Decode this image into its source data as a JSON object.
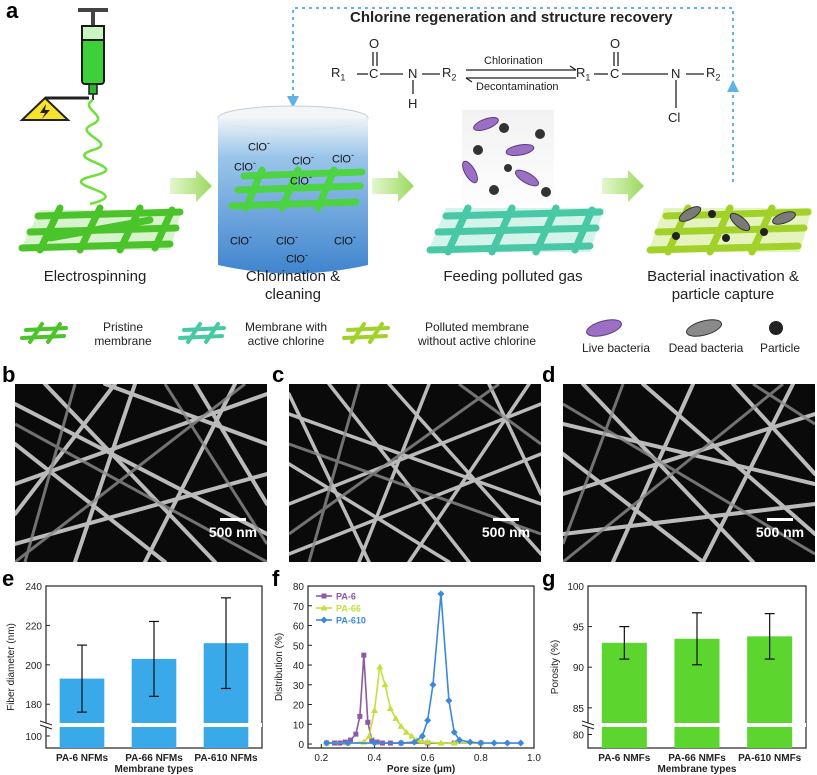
{
  "panels": {
    "a": "a",
    "b": "b",
    "c": "c",
    "d": "d",
    "e": "e",
    "f": "f",
    "g": "g"
  },
  "schematic": {
    "regen_title": "Chlorine regeneration and structure recovery",
    "reaction": {
      "left": {
        "R1": "R",
        "R1sub": "1",
        "C": "C",
        "O": "O",
        "N": "N",
        "H": "H",
        "R2": "R",
        "R2sub": "2"
      },
      "right": {
        "R1": "R",
        "R1sub": "1",
        "C": "C",
        "O": "O",
        "N": "N",
        "Cl": "Cl",
        "R2": "R",
        "R2sub": "2"
      },
      "forward": "Chlorination",
      "reverse": "Decontamination"
    },
    "clo_labels": [
      "ClO",
      "ClO",
      "ClO",
      "ClO",
      "ClO",
      "ClO",
      "ClO",
      "ClO",
      "ClO"
    ],
    "clo_charge": "-",
    "steps": [
      {
        "label": "Electrospinning"
      },
      {
        "label": "Chlorination &\ncleaning"
      },
      {
        "label": "Feeding polluted gas"
      },
      {
        "label": "Bacterial inactivation &\nparticle capture"
      }
    ],
    "legend": [
      {
        "label": "Pristine\nmembrane",
        "color": "#5cd135"
      },
      {
        "label": "Membrane with\nactive chlorine",
        "color": "#4fd1b0"
      },
      {
        "label": "Polluted membrane\nwithout active chlorine",
        "color": "#a8d92a"
      },
      {
        "label": "Live bacteria",
        "color": "#9b6fc4"
      },
      {
        "label": "Dead bacteria",
        "color": "#7a7a7a"
      },
      {
        "label": "Particle",
        "color": "#333333"
      }
    ]
  },
  "sem": {
    "scale_b": "500 nm",
    "scale_c": "500 nm",
    "scale_d": "500 nm"
  },
  "chart_data": [
    {
      "type": "bar",
      "panel": "e",
      "categories": [
        "PA-6 NFMs",
        "PA-66 NFMs",
        "PA-610 NFMs"
      ],
      "values": [
        193,
        203,
        211
      ],
      "errors": [
        17,
        19,
        23
      ],
      "xlabel": "Membrane types",
      "ylabel": "Fiber diameter (nm)",
      "ylim": [
        90,
        240
      ],
      "yticks": [
        "100",
        "180",
        "200",
        "220",
        "240"
      ],
      "axis_break": true,
      "color": "#39a9ea"
    },
    {
      "type": "line",
      "panel": "f",
      "xlabel": "Pore size (μm)",
      "ylabel": "Distribution (%)",
      "xlim": [
        0.15,
        1.0
      ],
      "ylim": [
        -2,
        80
      ],
      "xticks": [
        "0.2",
        "0.4",
        "0.6",
        "0.8",
        "1.0"
      ],
      "yticks": [
        "0",
        "10",
        "20",
        "30",
        "40",
        "50",
        "60",
        "70",
        "80"
      ],
      "legend_position": "top-left",
      "series": [
        {
          "name": "PA-6",
          "color": "#8c5aa6",
          "marker": "square",
          "x": [
            0.22,
            0.25,
            0.27,
            0.29,
            0.31,
            0.33,
            0.345,
            0.36,
            0.375,
            0.39,
            0.41,
            0.43,
            0.46,
            0.5,
            0.6,
            0.7,
            0.8
          ],
          "y": [
            0.5,
            0.5,
            0.5,
            1,
            2,
            5,
            14,
            45,
            11,
            2,
            1,
            0.5,
            0.5,
            0.5,
            0.5,
            0.5,
            0.5
          ]
        },
        {
          "name": "PA-66",
          "color": "#c3e03c",
          "marker": "triangle",
          "x": [
            0.22,
            0.3,
            0.36,
            0.38,
            0.4,
            0.42,
            0.44,
            0.46,
            0.48,
            0.5,
            0.52,
            0.54,
            0.56,
            0.58,
            0.6,
            0.65,
            0.7,
            0.8
          ],
          "y": [
            0.5,
            0.5,
            1,
            4,
            17,
            39,
            30,
            18,
            13,
            9,
            6,
            4,
            2,
            1.5,
            1,
            0.5,
            0.5,
            0.5
          ]
        },
        {
          "name": "PA-610",
          "color": "#3a8ad9",
          "marker": "diamond",
          "x": [
            0.22,
            0.3,
            0.4,
            0.5,
            0.55,
            0.58,
            0.6,
            0.62,
            0.65,
            0.68,
            0.7,
            0.72,
            0.76,
            0.8,
            0.85,
            0.9,
            0.95
          ],
          "y": [
            0.5,
            0.5,
            0.5,
            0.5,
            1,
            4,
            12,
            30,
            76,
            22,
            6,
            2,
            1,
            0.5,
            0.5,
            0.5,
            0.5
          ]
        }
      ]
    },
    {
      "type": "bar",
      "panel": "g",
      "categories": [
        "PA-6 NMFs",
        "PA-66 NMFs",
        "PA-610 NMFs"
      ],
      "values": [
        93,
        93.5,
        93.8
      ],
      "errors": [
        2,
        3.2,
        2.8
      ],
      "xlabel": "Membrane types",
      "ylabel": "Porosity (%)",
      "ylim": [
        78,
        100
      ],
      "yticks": [
        "80",
        "85",
        "90",
        "95",
        "100"
      ],
      "axis_break": true,
      "color": "#5cd62e"
    }
  ]
}
